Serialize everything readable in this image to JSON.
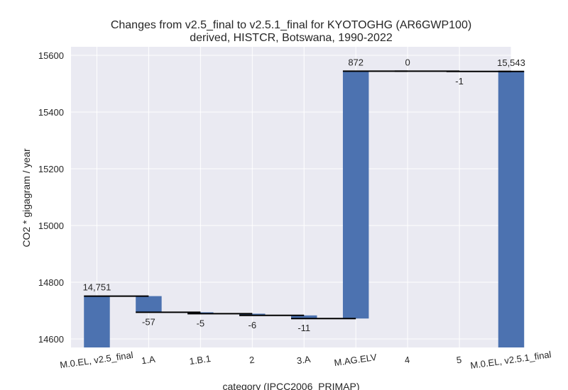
{
  "chart_data": {
    "type": "bar",
    "subtype": "waterfall",
    "title": [
      "Changes from v2.5_final to v2.5.1_final for KYOTOGHG (AR6GWP100)",
      "derived, HISTCR, Botswana, 1990-2022"
    ],
    "xlabel": "category (IPCC2006_PRIMAP)",
    "ylabel": "CO2 * gigagram / year",
    "ylim": [
      14570,
      15630
    ],
    "yticks": [
      14600,
      14800,
      15000,
      15200,
      15400,
      15600
    ],
    "grid": true,
    "bar_color": "#4c72b0",
    "connector_color": "#000000",
    "plot_background": "#eaeaf2",
    "categories": [
      "M.0.EL, v2.5_final",
      "1.A",
      "1.B.1",
      "2",
      "3.A",
      "M.AG.ELV",
      "4",
      "5",
      "M.0.EL, v2.5.1_final"
    ],
    "bars": [
      {
        "category": "M.0.EL, v2.5_final",
        "kind": "total",
        "start": 14570,
        "end": 14751,
        "label": "14,751"
      },
      {
        "category": "1.A",
        "kind": "delta",
        "start": 14751,
        "end": 14694,
        "label": "-57"
      },
      {
        "category": "1.B.1",
        "kind": "delta",
        "start": 14694,
        "end": 14689,
        "label": "-5"
      },
      {
        "category": "2",
        "kind": "delta",
        "start": 14689,
        "end": 14683,
        "label": "-6"
      },
      {
        "category": "3.A",
        "kind": "delta",
        "start": 14683,
        "end": 14672,
        "label": "-11"
      },
      {
        "category": "M.AG.ELV",
        "kind": "delta",
        "start": 14672,
        "end": 15544,
        "label": "872"
      },
      {
        "category": "4",
        "kind": "delta",
        "start": 15544,
        "end": 15544,
        "label": "0"
      },
      {
        "category": "5",
        "kind": "delta",
        "start": 15544,
        "end": 15543,
        "label": "-1"
      },
      {
        "category": "M.0.EL, v2.5.1_final",
        "kind": "total",
        "start": 14570,
        "end": 15543,
        "label": "15,543"
      }
    ]
  }
}
